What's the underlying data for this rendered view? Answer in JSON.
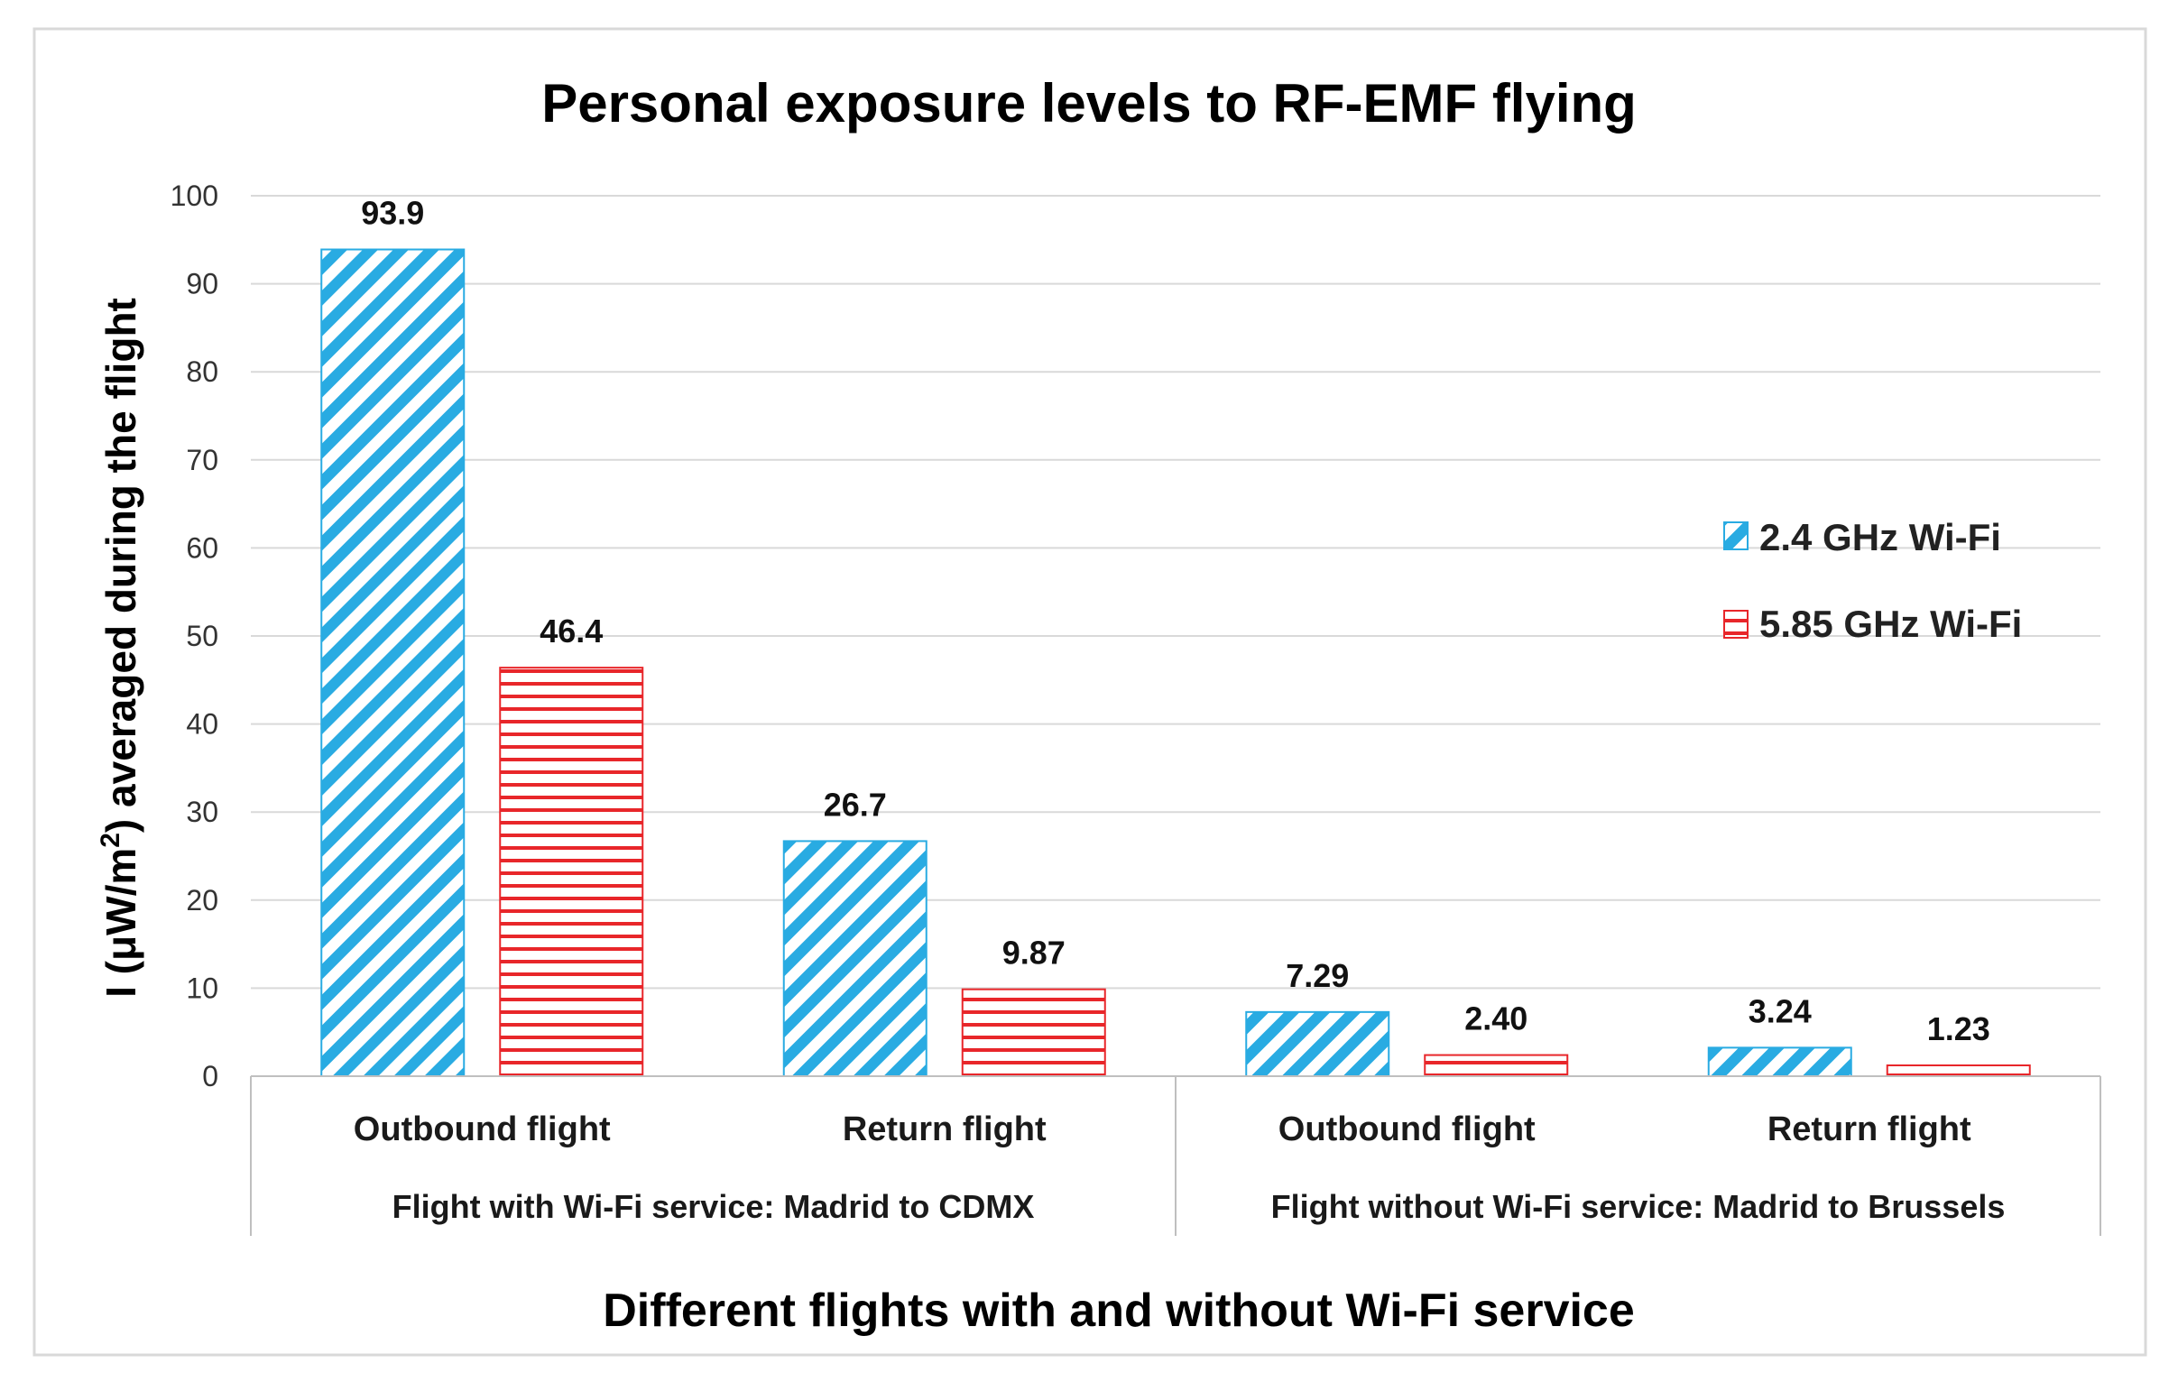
{
  "chart_data": {
    "type": "bar",
    "title": "Personal exposure levels to RF-EMF flying",
    "ylabel_prefix": "I (μW/m",
    "ylabel_sup": "2",
    "ylabel_suffix": ") averaged during the flight",
    "xlabel": "Different flights with and without Wi-Fi service",
    "ylim": [
      0,
      100
    ],
    "yticks": [
      0,
      10,
      20,
      30,
      40,
      50,
      60,
      70,
      80,
      90,
      100
    ],
    "grid": true,
    "legend_position": "right",
    "groups": [
      {
        "label": "Flight with Wi-Fi service: Madrid to CDMX",
        "categories": [
          "Outbound flight",
          "Return flight"
        ]
      },
      {
        "label": "Flight without Wi-Fi service: Madrid to Brussels",
        "categories": [
          "Outbound flight",
          "Return flight"
        ]
      }
    ],
    "categories": [
      "Outbound flight",
      "Return flight",
      "Outbound flight",
      "Return flight"
    ],
    "series": [
      {
        "name": "2.4 GHz Wi-Fi",
        "color": "#29abe2",
        "pattern": "diagonal",
        "values": [
          93.9,
          26.7,
          7.29,
          3.24
        ],
        "labels": [
          "93.9",
          "26.7",
          "7.29",
          "3.24"
        ]
      },
      {
        "name": "5.85 GHz Wi-Fi",
        "color": "#e8262a",
        "pattern": "horizontal",
        "values": [
          46.4,
          9.87,
          2.4,
          1.23
        ],
        "labels": [
          "46.4",
          "9.87",
          "2.40",
          "1.23"
        ]
      }
    ]
  }
}
